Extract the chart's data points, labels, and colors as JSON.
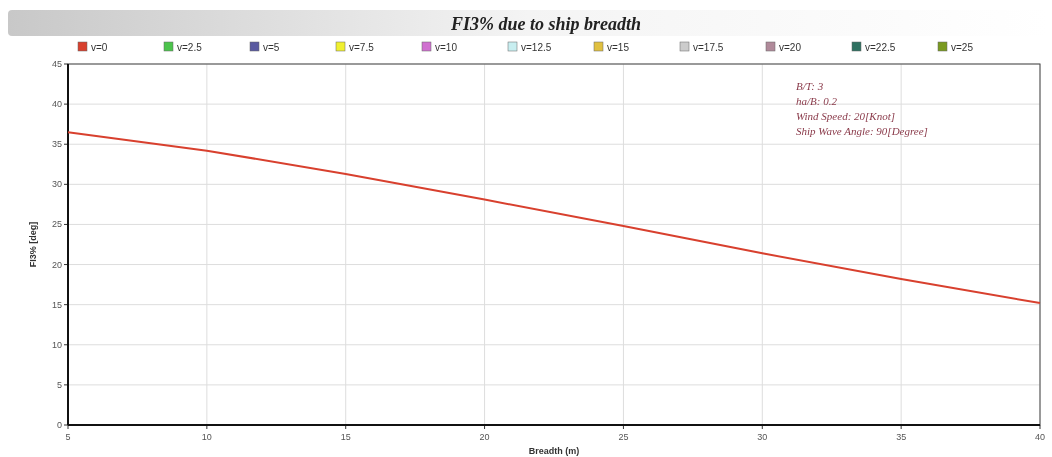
{
  "chart_data": {
    "type": "line",
    "title": "FI3% due to ship breadth",
    "xlabel": "Breadth (m)",
    "ylabel": "FI3% [deg]",
    "x": [
      5,
      10,
      15,
      20,
      25,
      30,
      35,
      40
    ],
    "series": [
      {
        "name": "v=0",
        "color": "#d8402e",
        "values": [
          36.5,
          34.2,
          31.3,
          28.1,
          24.8,
          21.4,
          18.2,
          15.2
        ]
      },
      {
        "name": "v=2.5",
        "color": "#4cc44c",
        "values": [
          null,
          null,
          null,
          null,
          null,
          null,
          null,
          null
        ]
      },
      {
        "name": "v=5",
        "color": "#5a5aa0",
        "values": [
          null,
          null,
          null,
          null,
          null,
          null,
          null,
          null
        ]
      },
      {
        "name": "v=7.5",
        "color": "#f0f030",
        "values": [
          null,
          null,
          null,
          null,
          null,
          null,
          null,
          null
        ]
      },
      {
        "name": "v=10",
        "color": "#d070d0",
        "values": [
          null,
          null,
          null,
          null,
          null,
          null,
          null,
          null
        ]
      },
      {
        "name": "v=12.5",
        "color": "#c8eef0",
        "values": [
          null,
          null,
          null,
          null,
          null,
          null,
          null,
          null
        ]
      },
      {
        "name": "v=15",
        "color": "#e0c040",
        "values": [
          null,
          null,
          null,
          null,
          null,
          null,
          null,
          null
        ]
      },
      {
        "name": "v=17.5",
        "color": "#cccccc",
        "values": [
          null,
          null,
          null,
          null,
          null,
          null,
          null,
          null
        ]
      },
      {
        "name": "v=20",
        "color": "#b08a9a",
        "values": [
          null,
          null,
          null,
          null,
          null,
          null,
          null,
          null
        ]
      },
      {
        "name": "v=22.5",
        "color": "#2e7060",
        "values": [
          null,
          null,
          null,
          null,
          null,
          null,
          null,
          null
        ]
      },
      {
        "name": "v=25",
        "color": "#7a9a20",
        "values": [
          null,
          null,
          null,
          null,
          null,
          null,
          null,
          null
        ]
      }
    ],
    "xlim": [
      5,
      40
    ],
    "xticks": [
      5,
      10,
      15,
      20,
      25,
      30,
      35,
      40
    ],
    "ylim": [
      0,
      45
    ],
    "yticks": [
      0,
      5,
      10,
      15,
      20,
      25,
      30,
      35,
      40,
      45
    ],
    "grid": true,
    "legend": "top left",
    "marker": "none",
    "line_style": "solid",
    "annotations": [
      "B/T: 3",
      "ha/B: 0.2",
      "Wind Speed: 20[Knot]",
      "Ship Wave Angle: 90[Degree]"
    ]
  }
}
